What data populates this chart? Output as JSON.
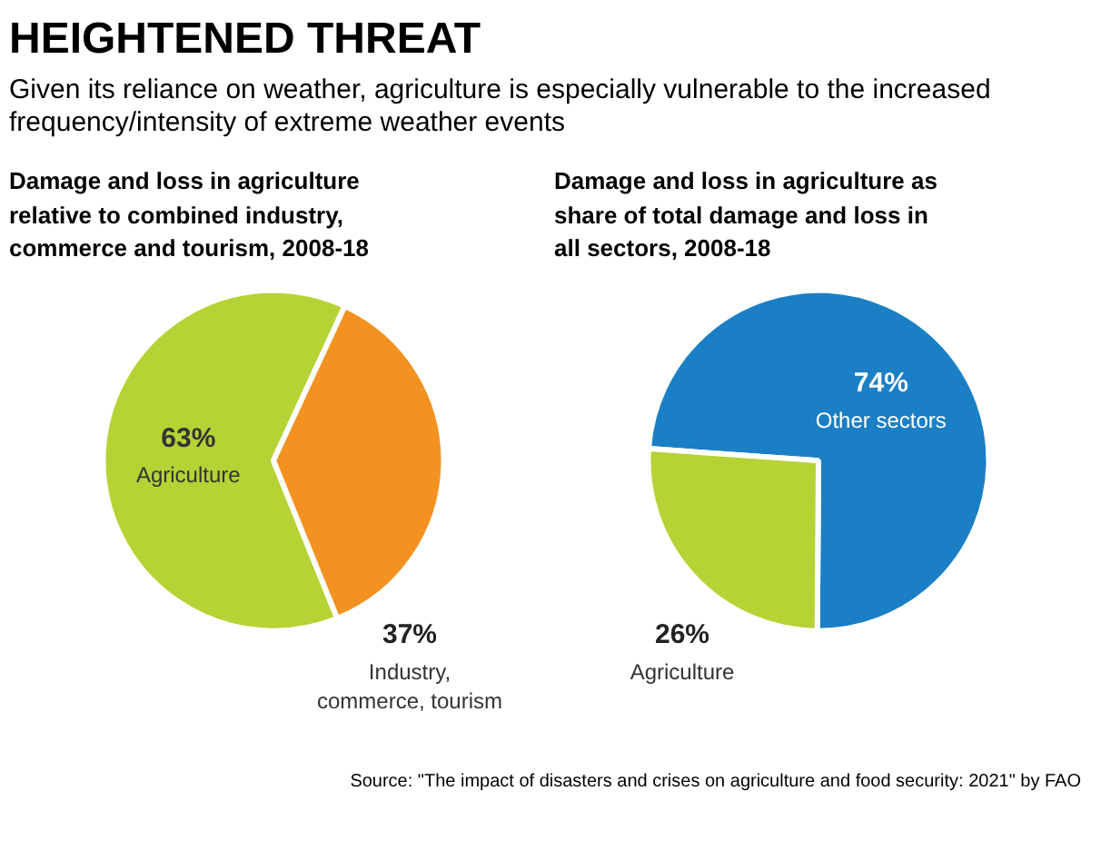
{
  "chart_data": [
    {
      "type": "pie",
      "title": "HEIGHTENED THREAT",
      "subtitle": "Given its reliance on weather, agriculture is especially vulnerable to the increased frequency/intensity of extreme weather events",
      "legend_title": "Damage and loss in agriculture relative to combined industry, commerce and tourism, 2008-18",
      "categories": [
        "Agriculture",
        "Industry, commerce, tourism"
      ],
      "values": [
        63,
        37
      ],
      "colors": [
        "#b5d334",
        "#f39221"
      ],
      "value_labels": [
        "63%",
        "37%"
      ]
    },
    {
      "type": "pie",
      "legend_title": "Damage and loss in agriculture as share of total damage and loss in all sectors, 2008-18",
      "categories": [
        "Other sectors",
        "Agriculture"
      ],
      "values": [
        74,
        26
      ],
      "colors": [
        "#1a7fc4",
        "#b5d334"
      ],
      "value_labels": [
        "74%",
        "26%"
      ],
      "annotations": [
        "Source: \"The impact of disasters and crises on agriculture and food security: 2021\" by FAO"
      ]
    }
  ]
}
